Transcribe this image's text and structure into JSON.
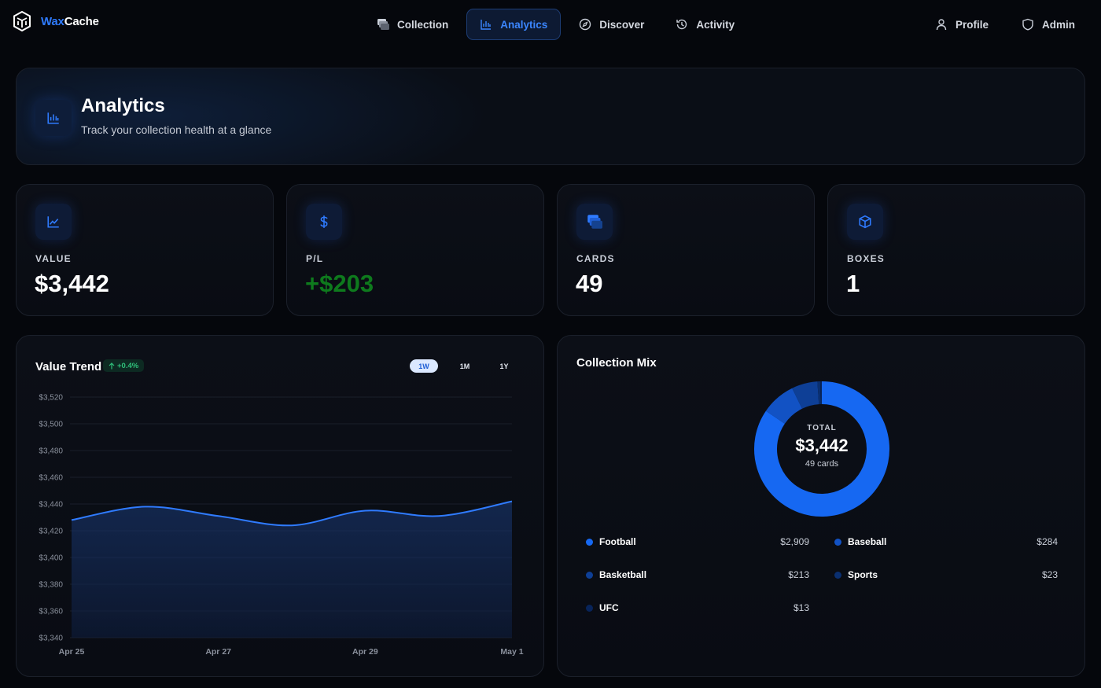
{
  "brand": {
    "part1": "Wax",
    "part2": "Cache"
  },
  "nav": {
    "center": [
      {
        "label": "Collection",
        "icon": "cards-icon",
        "active": false
      },
      {
        "label": "Analytics",
        "icon": "bar-chart-icon",
        "active": true
      },
      {
        "label": "Discover",
        "icon": "compass-icon",
        "active": false
      },
      {
        "label": "Activity",
        "icon": "history-icon",
        "active": false
      }
    ],
    "right": [
      {
        "label": "Profile",
        "icon": "user-icon"
      },
      {
        "label": "Admin",
        "icon": "shield-icon"
      }
    ]
  },
  "header": {
    "title": "Analytics",
    "subtitle": "Track your collection health at a glance"
  },
  "stats": [
    {
      "label": "VALUE",
      "value": "$3,442",
      "icon": "trend-chart-icon"
    },
    {
      "label": "P/L",
      "value": "+$203",
      "icon": "dollar-icon",
      "positive": true
    },
    {
      "label": "CARDS",
      "value": "49",
      "icon": "cards-icon"
    },
    {
      "label": "BOXES",
      "value": "1",
      "icon": "box-icon"
    }
  ],
  "trend": {
    "title": "Value Trend",
    "badge": "+0.4%",
    "ranges": [
      "1W",
      "1M",
      "1Y"
    ],
    "active_range": "1W"
  },
  "mix": {
    "title": "Collection Mix",
    "center_label": "TOTAL",
    "center_value": "$3,442",
    "center_sub": "49 cards",
    "items": [
      {
        "name": "Football",
        "value": "$2,909",
        "amount": 2909,
        "color": "#1668f2"
      },
      {
        "name": "Baseball",
        "value": "$284",
        "amount": 284,
        "color": "#1252c4"
      },
      {
        "name": "Basketball",
        "value": "$213",
        "amount": 213,
        "color": "#0e3f96"
      },
      {
        "name": "Sports",
        "value": "$23",
        "amount": 23,
        "color": "#0a2f70"
      },
      {
        "name": "UFC",
        "value": "$13",
        "amount": 13,
        "color": "#08245a"
      }
    ]
  },
  "chart_data": {
    "type": "area",
    "title": "Value Trend",
    "x": [
      "Apr 25",
      "Apr 26",
      "Apr 27",
      "Apr 28",
      "Apr 29",
      "Apr 30",
      "May 1"
    ],
    "x_ticks": [
      "Apr 25",
      "Apr 27",
      "Apr 29",
      "May 1"
    ],
    "series": [
      {
        "values": [
          3428,
          3438,
          3431,
          3424,
          3435,
          3431,
          3442
        ]
      }
    ],
    "y_ticks": [
      3340,
      3360,
      3380,
      3400,
      3420,
      3440,
      3460,
      3480,
      3500,
      3520
    ],
    "ylim": [
      3340,
      3520
    ],
    "grid": true,
    "color": "#2f7bff"
  }
}
